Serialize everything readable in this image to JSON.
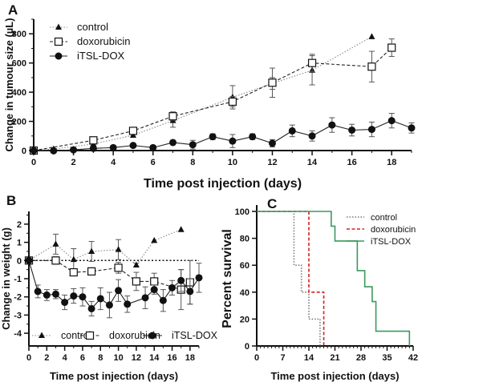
{
  "chart_data": [
    {
      "panel": "A",
      "type": "line",
      "xlabel": "Time post injection (days)",
      "ylabel": "Change in tumour size (µL)",
      "xlim": [
        0,
        19
      ],
      "ylim": [
        0,
        900
      ],
      "xticks": [
        0,
        2,
        4,
        6,
        8,
        10,
        12,
        14,
        16,
        18
      ],
      "yticks": [
        0,
        200,
        400,
        600,
        800
      ],
      "legend_position": "top-left",
      "series": [
        {
          "name": "control",
          "marker": "triangle",
          "line": "dotted",
          "color": "#888888",
          "x": [
            0,
            1,
            3,
            5,
            7,
            10,
            12,
            14,
            17
          ],
          "y": [
            0,
            10,
            45,
            105,
            205,
            365,
            460,
            550,
            780
          ],
          "err": [
            0,
            0,
            15,
            15,
            45,
            80,
            40,
            100,
            0
          ]
        },
        {
          "name": "doxorubicin",
          "marker": "open-square",
          "line": "dashed",
          "color": "#222222",
          "x": [
            0,
            3,
            5,
            7,
            10,
            12,
            14,
            17,
            18
          ],
          "y": [
            0,
            70,
            135,
            235,
            335,
            465,
            600,
            575,
            705
          ],
          "err": [
            0,
            10,
            15,
            30,
            35,
            100,
            60,
            105,
            60
          ]
        },
        {
          "name": "iTSL-DOX",
          "marker": "circle",
          "line": "solid",
          "color": "#222222",
          "x": [
            0,
            1,
            2,
            3,
            4,
            5,
            6,
            7,
            8,
            9,
            10,
            11,
            12,
            13,
            14,
            15,
            16,
            17,
            18,
            19
          ],
          "y": [
            0,
            -2,
            5,
            15,
            20,
            35,
            20,
            55,
            40,
            95,
            65,
            95,
            50,
            135,
            100,
            175,
            140,
            145,
            205,
            155
          ],
          "err": [
            0,
            0,
            0,
            10,
            0,
            0,
            0,
            10,
            30,
            20,
            45,
            20,
            25,
            40,
            35,
            50,
            40,
            50,
            50,
            35
          ]
        }
      ]
    },
    {
      "panel": "B",
      "type": "line",
      "xlabel": "Time post injection (days)",
      "ylabel": "Change in weight (g)",
      "xlim": [
        0,
        19
      ],
      "ylim": [
        -4.7,
        2.7
      ],
      "xticks": [
        0,
        2,
        4,
        6,
        8,
        10,
        12,
        14,
        16,
        18
      ],
      "yticks": [
        2,
        1,
        0,
        -1,
        -2,
        -3,
        -4
      ],
      "legend_position": "bottom",
      "series": [
        {
          "name": "control",
          "marker": "triangle",
          "line": "dotted",
          "color": "#888888",
          "x": [
            0,
            3,
            5,
            7,
            10,
            12,
            14,
            17
          ],
          "y": [
            0,
            0.9,
            0.05,
            0.5,
            0.6,
            -0.25,
            1.1,
            1.7
          ],
          "err": [
            0,
            0.55,
            0.6,
            0.55,
            0.55,
            0.1,
            0,
            0
          ]
        },
        {
          "name": "doxorubicin",
          "marker": "open-square",
          "line": "dashed",
          "color": "#222222",
          "x": [
            0,
            3,
            5,
            7,
            10,
            12,
            14,
            17,
            18
          ],
          "y": [
            0,
            0,
            -0.65,
            -0.6,
            -0.4,
            -1.15,
            -1.15,
            -1.6,
            -1.2
          ],
          "err": [
            0,
            0.2,
            0.15,
            0.2,
            0.3,
            0.5,
            0.45,
            1.1,
            1.2
          ]
        },
        {
          "name": "iTSL-DOX",
          "marker": "circle",
          "line": "solid",
          "color": "#222222",
          "x": [
            0,
            1,
            2,
            3,
            4,
            5,
            6,
            7,
            8,
            9,
            10,
            11,
            13,
            14,
            15,
            16,
            17,
            18,
            19
          ],
          "y": [
            0,
            -1.7,
            -1.9,
            -1.85,
            -2.3,
            -1.95,
            -2.0,
            -2.65,
            -2.1,
            -2.45,
            -1.65,
            -2.4,
            -2.05,
            -1.6,
            -2.2,
            -1.5,
            -1.1,
            -1.7,
            -0.95
          ],
          "err": [
            0,
            0.35,
            0.3,
            0.25,
            0.4,
            0.4,
            0.5,
            0.4,
            0.6,
            0.7,
            0.6,
            0.45,
            0.6,
            0.25,
            0.6,
            0.4,
            0.6,
            0.7,
            0.8
          ]
        }
      ]
    },
    {
      "panel": "C",
      "type": "line",
      "subtype": "kaplan-meier",
      "xlabel": "Time post injection (days)",
      "ylabel": "Percent survival",
      "xlim": [
        0,
        42
      ],
      "ylim": [
        0,
        100
      ],
      "xticks": [
        0,
        7,
        14,
        21,
        28,
        35,
        42
      ],
      "yticks": [
        0,
        20,
        40,
        60,
        80,
        100
      ],
      "legend_position": "top-right",
      "series": [
        {
          "name": "control",
          "line": "dotted",
          "color": "#777777",
          "x": [
            0,
            10,
            12,
            14,
            17
          ],
          "y": [
            100,
            60,
            40,
            20,
            0
          ]
        },
        {
          "name": "doxorubicin",
          "line": "dashed",
          "color": "#d42020",
          "x": [
            0,
            14,
            18
          ],
          "y": [
            100,
            40,
            0
          ]
        },
        {
          "name": "iTSL-DOX",
          "line": "solid",
          "color": "#3a9a5a",
          "x": [
            0,
            20,
            21,
            27,
            29,
            31,
            32,
            41
          ],
          "y": [
            100,
            89,
            78,
            56,
            44,
            33,
            11,
            0
          ]
        }
      ]
    }
  ]
}
